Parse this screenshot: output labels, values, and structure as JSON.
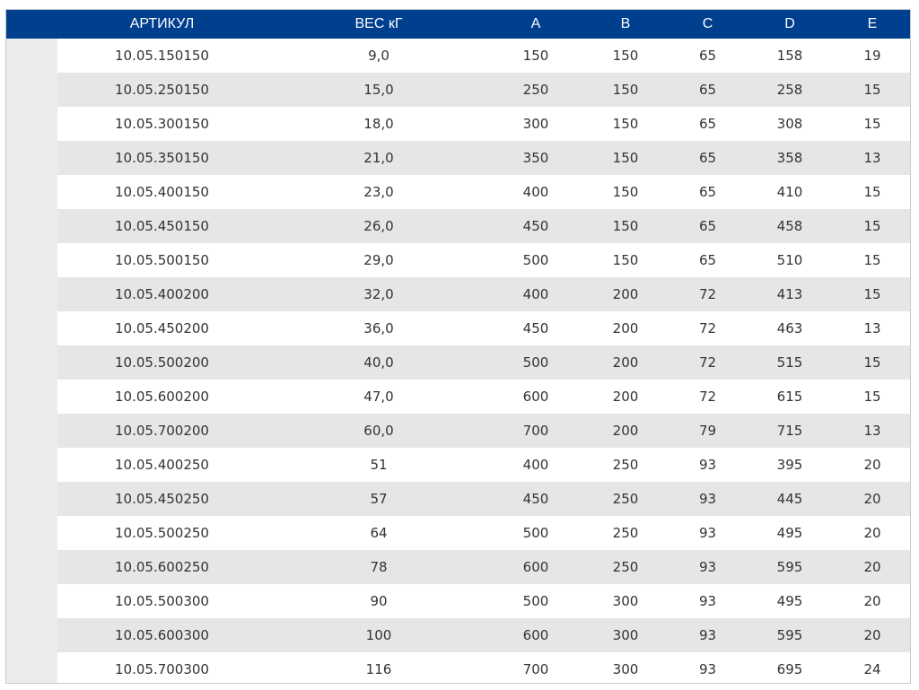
{
  "table": {
    "headers": [
      "АРТИКУЛ",
      "ВЕС кГ",
      "A",
      "B",
      "C",
      "D",
      "E"
    ],
    "rows": [
      [
        "10.05.150150",
        "9,0",
        "150",
        "150",
        "65",
        "158",
        "19"
      ],
      [
        "10.05.250150",
        "15,0",
        "250",
        "150",
        "65",
        "258",
        "15"
      ],
      [
        "10.05.300150",
        "18,0",
        "300",
        "150",
        "65",
        "308",
        "15"
      ],
      [
        "10.05.350150",
        "21,0",
        "350",
        "150",
        "65",
        "358",
        "13"
      ],
      [
        "10.05.400150",
        "23,0",
        "400",
        "150",
        "65",
        "410",
        "15"
      ],
      [
        "10.05.450150",
        "26,0",
        "450",
        "150",
        "65",
        "458",
        "15"
      ],
      [
        "10.05.500150",
        "29,0",
        "500",
        "150",
        "65",
        "510",
        "15"
      ],
      [
        "10.05.400200",
        "32,0",
        "400",
        "200",
        "72",
        "413",
        "15"
      ],
      [
        "10.05.450200",
        "36,0",
        "450",
        "200",
        "72",
        "463",
        "13"
      ],
      [
        "10.05.500200",
        "40,0",
        "500",
        "200",
        "72",
        "515",
        "15"
      ],
      [
        "10.05.600200",
        "47,0",
        "600",
        "200",
        "72",
        "615",
        "15"
      ],
      [
        "10.05.700200",
        "60,0",
        "700",
        "200",
        "79",
        "715",
        "13"
      ],
      [
        "10.05.400250",
        "51",
        "400",
        "250",
        "93",
        "395",
        "20"
      ],
      [
        "10.05.450250",
        "57",
        "450",
        "250",
        "93",
        "445",
        "20"
      ],
      [
        "10.05.500250",
        "64",
        "500",
        "250",
        "93",
        "495",
        "20"
      ],
      [
        "10.05.600250",
        "78",
        "600",
        "250",
        "93",
        "595",
        "20"
      ],
      [
        "10.05.500300",
        "90",
        "500",
        "300",
        "93",
        "495",
        "20"
      ],
      [
        "10.05.600300",
        "100",
        "600",
        "300",
        "93",
        "595",
        "20"
      ],
      [
        "10.05.700300",
        "116",
        "700",
        "300",
        "93",
        "695",
        "24"
      ]
    ]
  },
  "colors": {
    "header_bg": "#003e8e",
    "header_text": "#ffffff",
    "stripe_bg": "#e6e6e6",
    "stub_bg": "#ececec"
  }
}
